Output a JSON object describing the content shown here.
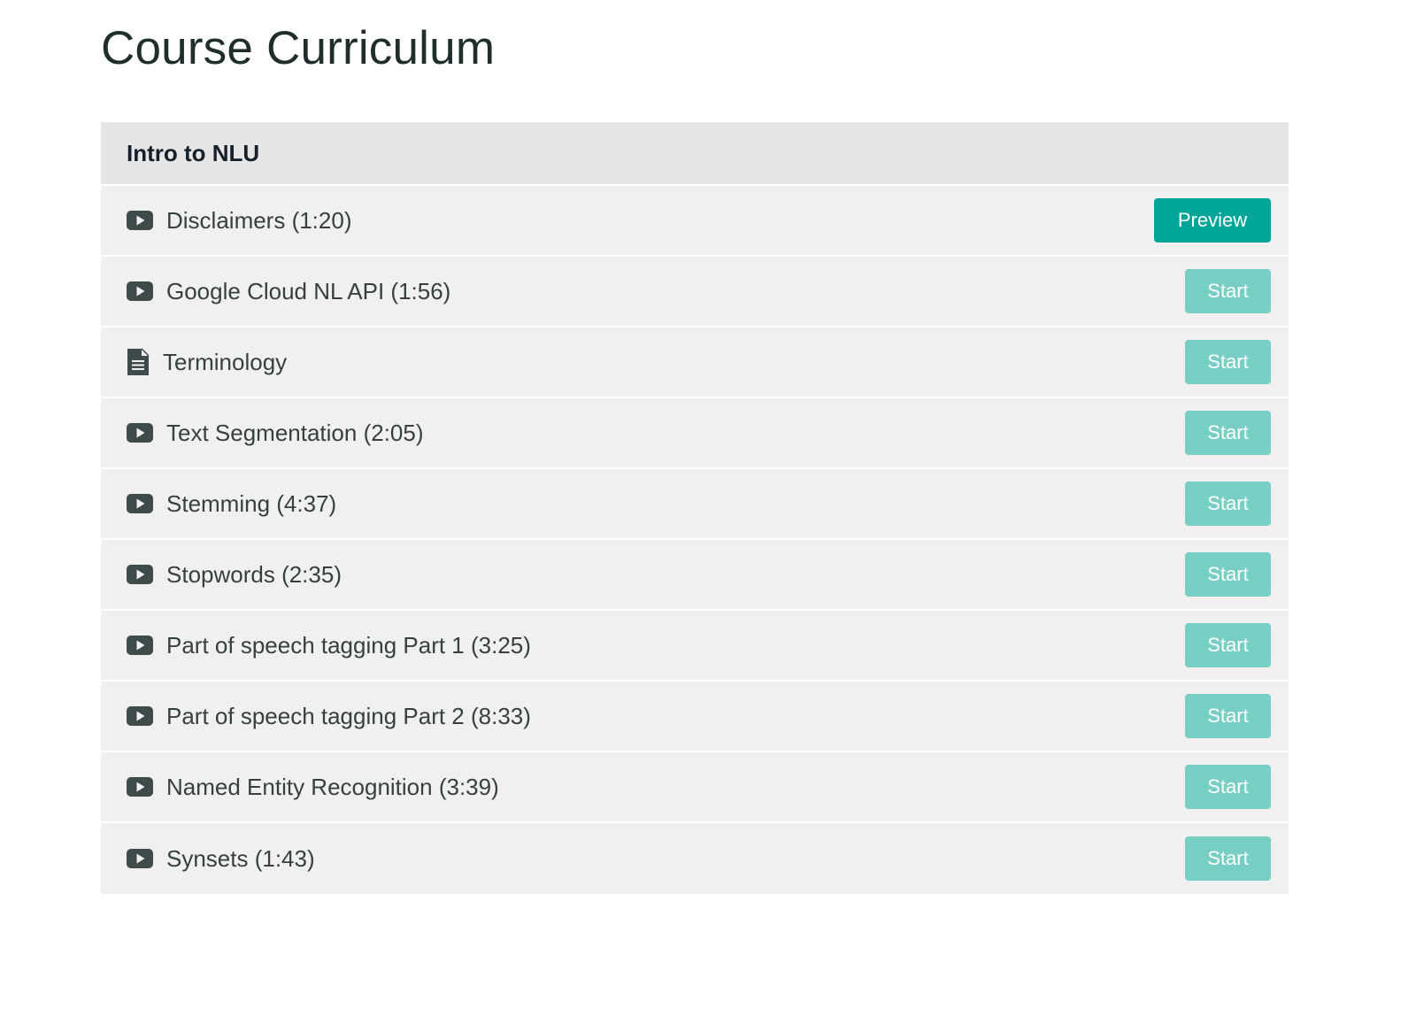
{
  "page": {
    "title": "Course Curriculum"
  },
  "section": {
    "title": "Intro to NLU",
    "lectures": [
      {
        "icon": "play-video-icon",
        "title": "Disclaimers (1:20)",
        "button": "Preview",
        "button_style": "preview"
      },
      {
        "icon": "play-video-icon",
        "title": "Google Cloud NL API (1:56)",
        "button": "Start",
        "button_style": "start"
      },
      {
        "icon": "document-icon",
        "title": "Terminology",
        "button": "Start",
        "button_style": "start"
      },
      {
        "icon": "play-video-icon",
        "title": "Text Segmentation (2:05)",
        "button": "Start",
        "button_style": "start"
      },
      {
        "icon": "play-video-icon",
        "title": "Stemming (4:37)",
        "button": "Start",
        "button_style": "start"
      },
      {
        "icon": "play-video-icon",
        "title": "Stopwords (2:35)",
        "button": "Start",
        "button_style": "start"
      },
      {
        "icon": "play-video-icon",
        "title": "Part of speech tagging Part 1 (3:25)",
        "button": "Start",
        "button_style": "start"
      },
      {
        "icon": "play-video-icon",
        "title": "Part of speech tagging Part 2 (8:33)",
        "button": "Start",
        "button_style": "start"
      },
      {
        "icon": "play-video-icon",
        "title": "Named Entity Recognition (3:39)",
        "button": "Start",
        "button_style": "start"
      },
      {
        "icon": "play-video-icon",
        "title": "Synsets (1:43)",
        "button": "Start",
        "button_style": "start"
      }
    ]
  },
  "colors": {
    "title_text": "#1f2e2d",
    "header_bg": "#e6e6e6",
    "row_bg": "#f0f0f0",
    "icon": "#3e4b4a",
    "preview_button": "#00a59a",
    "start_button": "#77cfc4"
  }
}
